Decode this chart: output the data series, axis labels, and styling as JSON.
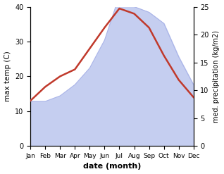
{
  "months": [
    "Jan",
    "Feb",
    "Mar",
    "Apr",
    "May",
    "Jun",
    "Jul",
    "Aug",
    "Sep",
    "Oct",
    "Nov",
    "Dec"
  ],
  "month_x": [
    1,
    2,
    3,
    4,
    5,
    6,
    7,
    8,
    9,
    10,
    11,
    12
  ],
  "temp": [
    13,
    17,
    20,
    22,
    28,
    34,
    39.5,
    38,
    34,
    26,
    19,
    14
  ],
  "precip": [
    8,
    8,
    9,
    11,
    14,
    19,
    27,
    25,
    24,
    22,
    16,
    11
  ],
  "temp_color": "#c0392b",
  "precip_fill_color": "#c5cef0",
  "precip_edge_color": "#aab4e8",
  "ylabel_left": "max temp (C)",
  "ylabel_right": "med. precipitation (kg/m2)",
  "xlabel": "date (month)",
  "ylim_left": [
    0,
    40
  ],
  "ylim_right": [
    0,
    25
  ],
  "yticks_left": [
    0,
    10,
    20,
    30,
    40
  ],
  "yticks_right": [
    0,
    5,
    10,
    15,
    20,
    25
  ],
  "background_color": "#ffffff"
}
